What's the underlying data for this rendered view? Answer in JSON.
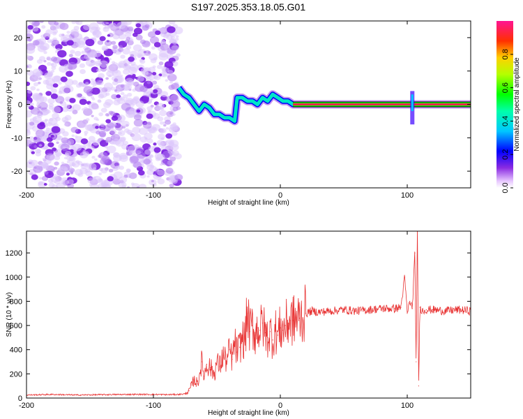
{
  "title": "S197.2025.353.18.05.G01",
  "chart_data": [
    {
      "type": "heatmap",
      "title": "S197.2025.353.18.05.G01",
      "xlabel": "Height of straight line (km)",
      "ylabel": "Frequency (Hz)",
      "xlim": [
        -200,
        150
      ],
      "ylim": [
        -25,
        25
      ],
      "xticks": [
        -200,
        -100,
        0,
        100
      ],
      "yticks": [
        -20,
        -10,
        0,
        10,
        20
      ],
      "noise_region_x": [
        -200,
        -80
      ],
      "signal_track": {
        "x": [
          -80,
          -76,
          -72,
          -68,
          -64,
          -60,
          -56,
          -52,
          -48,
          -44,
          -40,
          -36,
          -34,
          -30,
          -26,
          -22,
          -18,
          -14,
          -10,
          -6,
          -2,
          2,
          6,
          10,
          14,
          20,
          40,
          60,
          80,
          92,
          96,
          100,
          104,
          108,
          120,
          150
        ],
        "freq": [
          5,
          3,
          2,
          0,
          -2,
          0,
          -1,
          -3,
          -3,
          -4,
          -4,
          -5,
          2,
          2,
          1,
          1,
          0,
          2,
          1,
          3,
          2,
          1,
          1,
          0,
          0,
          0,
          0,
          0,
          0,
          0,
          0,
          0,
          0,
          0,
          0,
          0
        ]
      },
      "colorbar": {
        "label": "Normalized spectral amplitude",
        "ticks": [
          "0.0",
          "0.2",
          "0.4",
          "0.6",
          "0.8"
        ],
        "range": [
          0,
          1
        ]
      }
    },
    {
      "type": "line",
      "xlabel": "Height of straight line (km)",
      "ylabel": "SNR (10 * v/v)",
      "xlim": [
        -200,
        150
      ],
      "ylim": [
        0,
        1380
      ],
      "xticks": [
        -200,
        -100,
        0,
        100
      ],
      "yticks": [
        0,
        200,
        400,
        600,
        800,
        1000,
        1200
      ],
      "series": [
        {
          "name": "SNR",
          "color": "#e83232",
          "x": [
            -200,
            -180,
            -160,
            -140,
            -120,
            -100,
            -90,
            -80,
            -75,
            -72,
            -68,
            -65,
            -62,
            -60,
            -58,
            -55,
            -52,
            -50,
            -48,
            -45,
            -42,
            -40,
            -38,
            -36,
            -34,
            -32,
            -30,
            -28,
            -26,
            -24,
            -22,
            -20,
            -18,
            -16,
            -14,
            -12,
            -10,
            -8,
            -6,
            -4,
            -2,
            0,
            2,
            4,
            6,
            8,
            10,
            15,
            20,
            25,
            30,
            40,
            50,
            60,
            70,
            80,
            90,
            95,
            98,
            100,
            102,
            104,
            106,
            107,
            108,
            109,
            110,
            112,
            115,
            120,
            130,
            140,
            150
          ],
          "y": [
            25,
            30,
            25,
            28,
            30,
            30,
            28,
            30,
            35,
            60,
            150,
            120,
            300,
            180,
            280,
            250,
            200,
            300,
            260,
            350,
            300,
            400,
            320,
            450,
            380,
            420,
            500,
            470,
            700,
            550,
            600,
            520,
            580,
            560,
            620,
            540,
            500,
            550,
            480,
            560,
            520,
            580,
            560,
            600,
            620,
            640,
            640,
            660,
            700,
            720,
            710,
            720,
            730,
            720,
            730,
            740,
            740,
            750,
            1000,
            700,
            800,
            740,
            1200,
            300,
            1380,
            100,
            750,
            720,
            730,
            730,
            720,
            730,
            720
          ]
        }
      ]
    }
  ]
}
